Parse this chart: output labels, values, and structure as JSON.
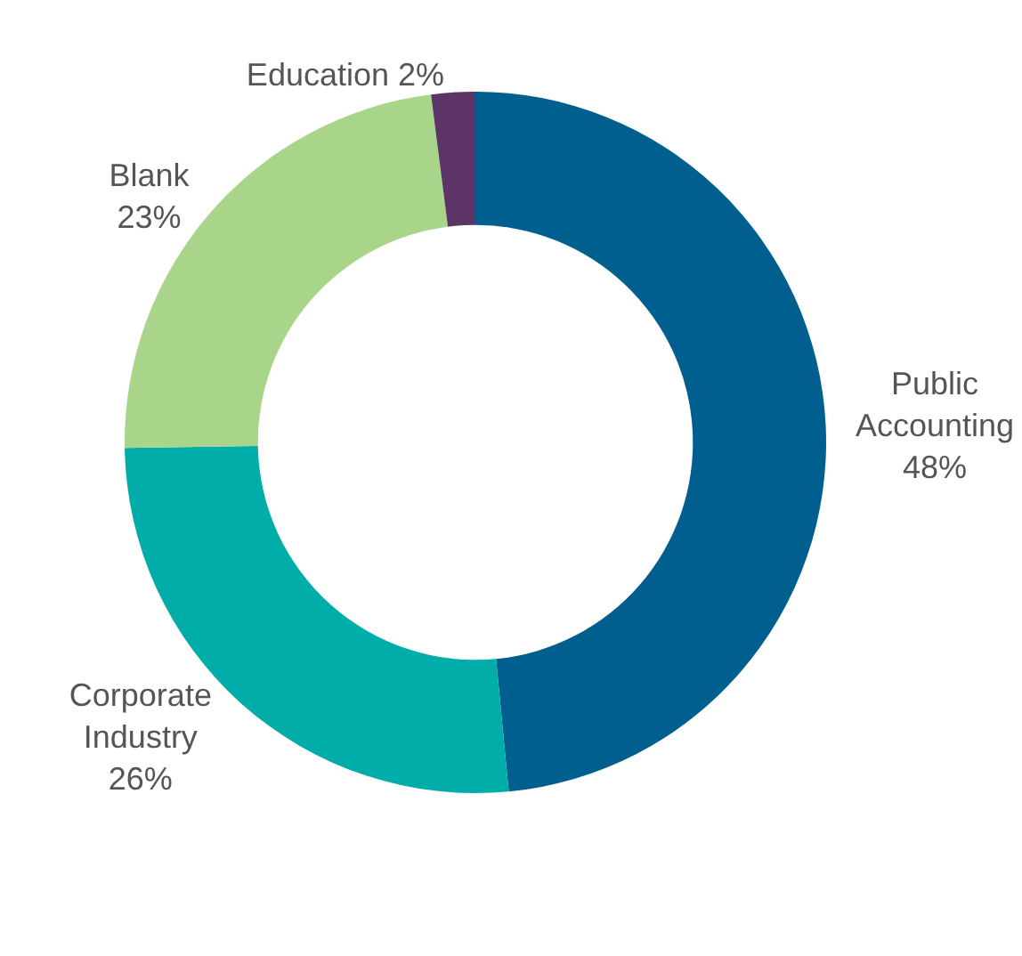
{
  "chart_data": {
    "type": "donut",
    "categories": [
      "Public Accounting",
      "Corporate Industry",
      "Blank",
      "Education"
    ],
    "values": [
      48,
      26,
      23,
      2
    ],
    "value_labels": [
      "48%",
      "26%",
      "23%",
      "2%"
    ],
    "colors": [
      "#005f8f",
      "#00ada8",
      "#a8d58a",
      "#5c3566"
    ],
    "legend": false
  }
}
